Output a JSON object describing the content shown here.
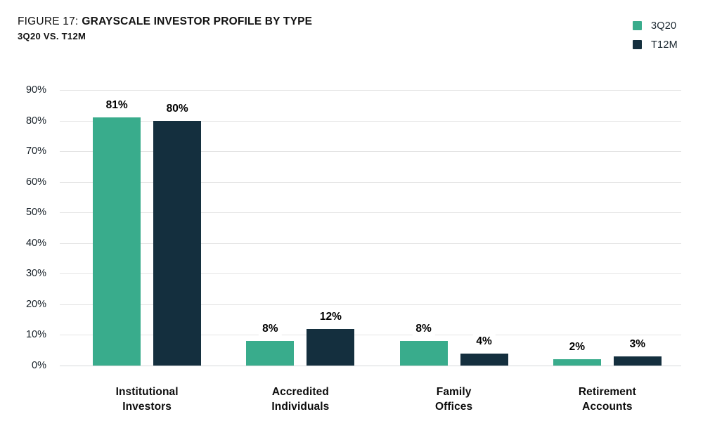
{
  "figure": {
    "title_prefix": "FIGURE 17:",
    "title_main": "GRAYSCALE INVESTOR PROFILE BY TYPE",
    "subtitle": "3Q20 VS. T12M"
  },
  "legend": [
    {
      "label": "3Q20",
      "color": "#39ac8c"
    },
    {
      "label": "T12M",
      "color": "#142f3e"
    }
  ],
  "chart_data": {
    "type": "bar",
    "title": "FIGURE 17: GRAYSCALE INVESTOR PROFILE BY TYPE",
    "subtitle": "3Q20 VS. T12M",
    "categories": [
      "Institutional Investors",
      "Accredited Individuals",
      "Family Offices",
      "Retirement Accounts"
    ],
    "series": [
      {
        "name": "3Q20",
        "color": "#39ac8c",
        "values": [
          81,
          8,
          8,
          2
        ],
        "labels": [
          "81%",
          "8%",
          "8%",
          "2%"
        ]
      },
      {
        "name": "T12M",
        "color": "#142f3e",
        "values": [
          80,
          12,
          4,
          3
        ],
        "labels": [
          "80%",
          "12%",
          "4%",
          "3%"
        ]
      }
    ],
    "y_ticks": [
      "90%",
      "80%",
      "70%",
      "60%",
      "50%",
      "40%",
      "30%",
      "20%",
      "10%",
      "0%"
    ],
    "ylim": [
      0,
      90
    ],
    "grid": true,
    "legend_position": "top-right"
  },
  "colors": {
    "background": "#ffffff",
    "gridline": "#e4e4e4",
    "axis_text": "#161f27",
    "value_text": "#000000"
  }
}
